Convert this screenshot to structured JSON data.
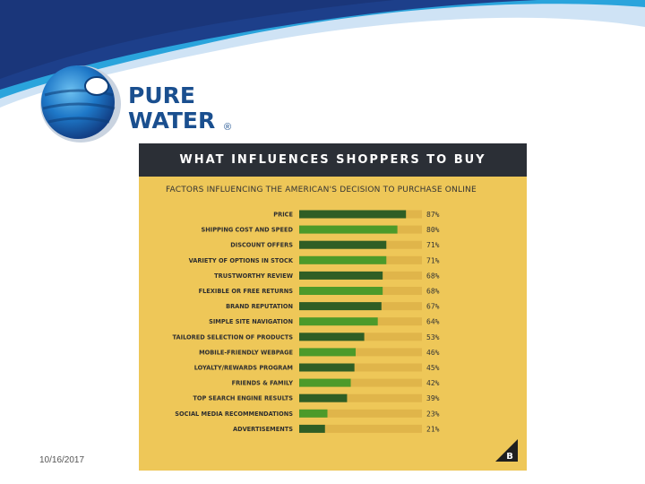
{
  "logo": {
    "line1": "PURE",
    "line2": "WATER",
    "registered": "®"
  },
  "footer": {
    "date": "10/16/2017"
  },
  "infographic": {
    "title": "WHAT INFLUENCES SHOPPERS TO BUY",
    "subtitle": "FACTORS INFLUENCING THE AMERICAN'S DECISION TO PURCHASE ONLINE",
    "brand_mark": "B"
  },
  "colors": {
    "dark_green": "#2f5e25",
    "light_green": "#4c9a2a",
    "track": "#e0b54a",
    "panel": "#eec758",
    "header": "#2b2f36",
    "brand_blue": "#1a4f8f"
  },
  "chart_data": {
    "type": "bar",
    "orientation": "horizontal",
    "title": "FACTORS INFLUENCING THE AMERICAN'S DECISION TO PURCHASE ONLINE",
    "xlim": [
      0,
      100
    ],
    "unit": "%",
    "categories": [
      "PRICE",
      "SHIPPING COST AND SPEED",
      "DISCOUNT OFFERS",
      "VARIETY OF OPTIONS IN STOCK",
      "TRUSTWORTHY REVIEW",
      "FLEXIBLE OR FREE RETURNS",
      "BRAND REPUTATION",
      "SIMPLE SITE NAVIGATION",
      "TAILORED SELECTION OF PRODUCTS",
      "MOBILE-FRIENDLY WEBPAGE",
      "LOYALTY/REWARDS PROGRAM",
      "FRIENDS & FAMILY",
      "TOP SEARCH ENGINE RESULTS",
      "SOCIAL MEDIA RECOMMENDATIONS",
      "ADVERTISEMENTS"
    ],
    "values": [
      87,
      80,
      71,
      71,
      68,
      68,
      67,
      64,
      53,
      46,
      45,
      42,
      39,
      23,
      21
    ],
    "labels": [
      "87%",
      "80%",
      "71%",
      "71%",
      "68%",
      "68%",
      "67%",
      "64%",
      "53%",
      "46%",
      "45%",
      "42%",
      "39%",
      "23%",
      "21%"
    ]
  }
}
